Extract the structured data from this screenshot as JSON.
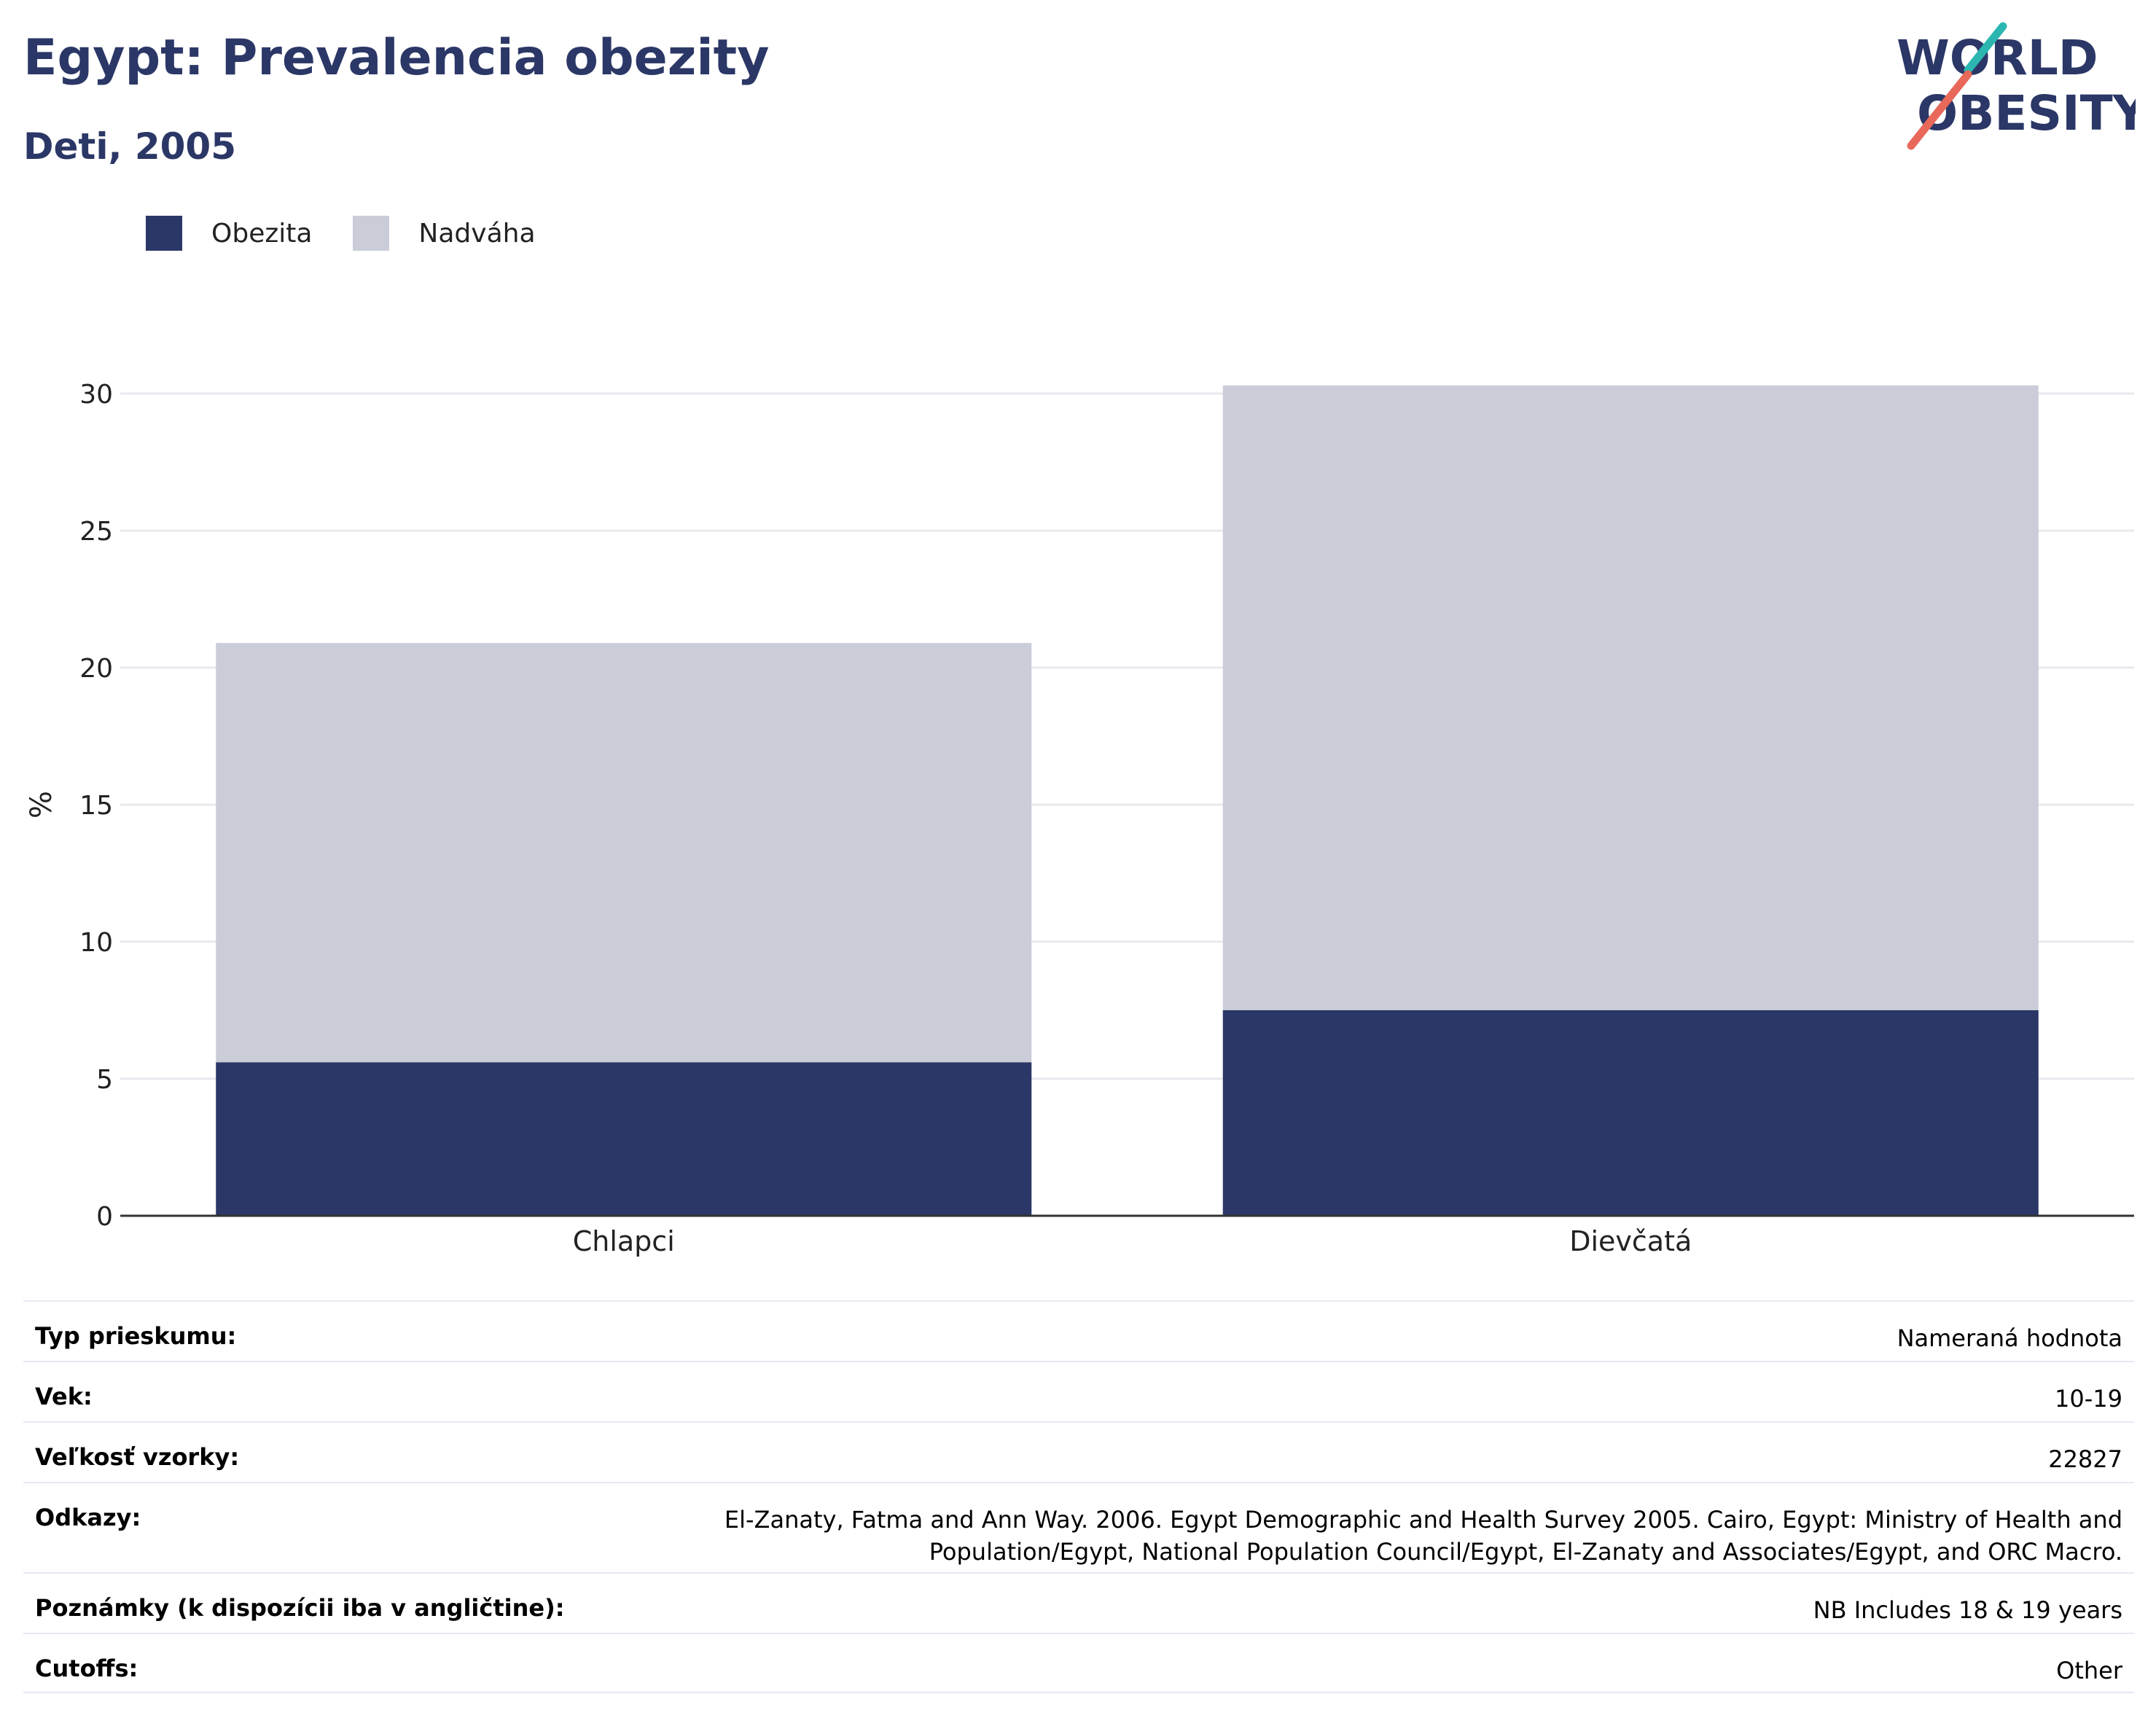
{
  "header": {
    "title": "Egypt: Prevalencia obezity",
    "subtitle": "Deti, 2005"
  },
  "logo": {
    "line1": "WORLD",
    "line2": "OBESITY",
    "accent_teal": "#2bb6b0",
    "accent_coral": "#e8685a",
    "color": "#2b3766"
  },
  "legend": [
    {
      "label": "Obezita",
      "color": "#2b3766"
    },
    {
      "label": "Nadváha",
      "color": "#cacdd8"
    }
  ],
  "chart_data": {
    "type": "bar",
    "stacked": true,
    "categories": [
      "Chlapci",
      "Dievčatá"
    ],
    "series": [
      {
        "name": "Obezita",
        "values": [
          5.6,
          7.5
        ],
        "color": "#2b3766"
      },
      {
        "name": "Nadváha",
        "values": [
          15.3,
          22.8
        ],
        "color": "#cacdd8"
      }
    ],
    "ylabel": "%",
    "ylim": [
      0,
      30
    ],
    "yticks": [
      0,
      5,
      10,
      15,
      20,
      25,
      30
    ],
    "grid": true,
    "legend_position": "top-left"
  },
  "meta": [
    {
      "label": "Typ prieskumu:",
      "value": "Nameraná hodnota"
    },
    {
      "label": "Vek:",
      "value": "10-19"
    },
    {
      "label": "Veľkosť vzorky:",
      "value": "22827"
    },
    {
      "label": "Odkazy:",
      "value": "El-Zanaty, Fatma and Ann Way. 2006. Egypt Demographic and Health Survey 2005. Cairo, Egypt: Ministry of Health and Population/Egypt, National Population Council/Egypt, El-Zanaty and Associates/Egypt, and ORC Macro."
    },
    {
      "label": "Poznámky (k dispozícii iba v angličtine):",
      "value": "NB Includes 18 & 19 years"
    },
    {
      "label": "Cutoffs:",
      "value": "Other"
    }
  ]
}
